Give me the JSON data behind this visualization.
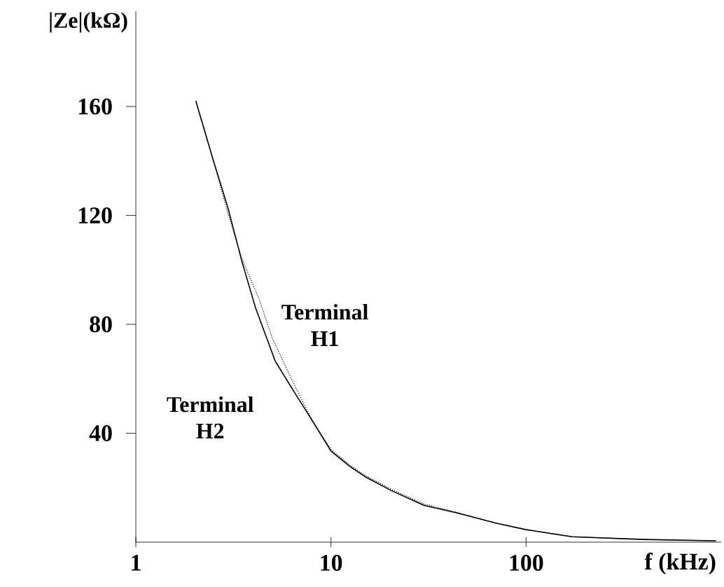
{
  "chart_data": {
    "type": "line",
    "xlabel": "f (kHz)",
    "ylabel": "|Ze|(kΩ)",
    "log": "x",
    "xlim": [
      1,
      1000
    ],
    "ylim": [
      0,
      195
    ],
    "xticks": [
      1,
      10,
      100
    ],
    "yticks": [
      40,
      80,
      120,
      160
    ],
    "grid": false,
    "series": [
      {
        "name": "Terminal H1",
        "color": "#000000",
        "line_style": "dotted",
        "x": [
          2.03,
          2.5,
          2.96,
          3.5,
          4.32,
          5.0,
          5.9,
          7.0,
          8.0,
          10,
          12.4,
          15,
          20.3,
          30,
          43.9,
          70,
          100,
          172,
          400,
          940
        ],
        "values": [
          162,
          140,
          121,
          104,
          88.6,
          75,
          64,
          53,
          45,
          34,
          28.5,
          24.5,
          19.5,
          14,
          11,
          7,
          4.6,
          2,
          1,
          0.5
        ]
      },
      {
        "name": "Terminal H2",
        "color": "#000000",
        "line_style": "solid",
        "x": [
          2.03,
          2.5,
          2.96,
          3.5,
          4.11,
          5.18,
          6.5,
          7.8,
          10,
          12.4,
          15,
          20.3,
          30,
          43.9,
          70,
          100,
          172,
          400,
          940
        ],
        "values": [
          162,
          140,
          123,
          103,
          86,
          66.5,
          55,
          46,
          33.5,
          28,
          24,
          19,
          13.5,
          10.8,
          7,
          4.6,
          2,
          1,
          0.5
        ]
      }
    ]
  }
}
